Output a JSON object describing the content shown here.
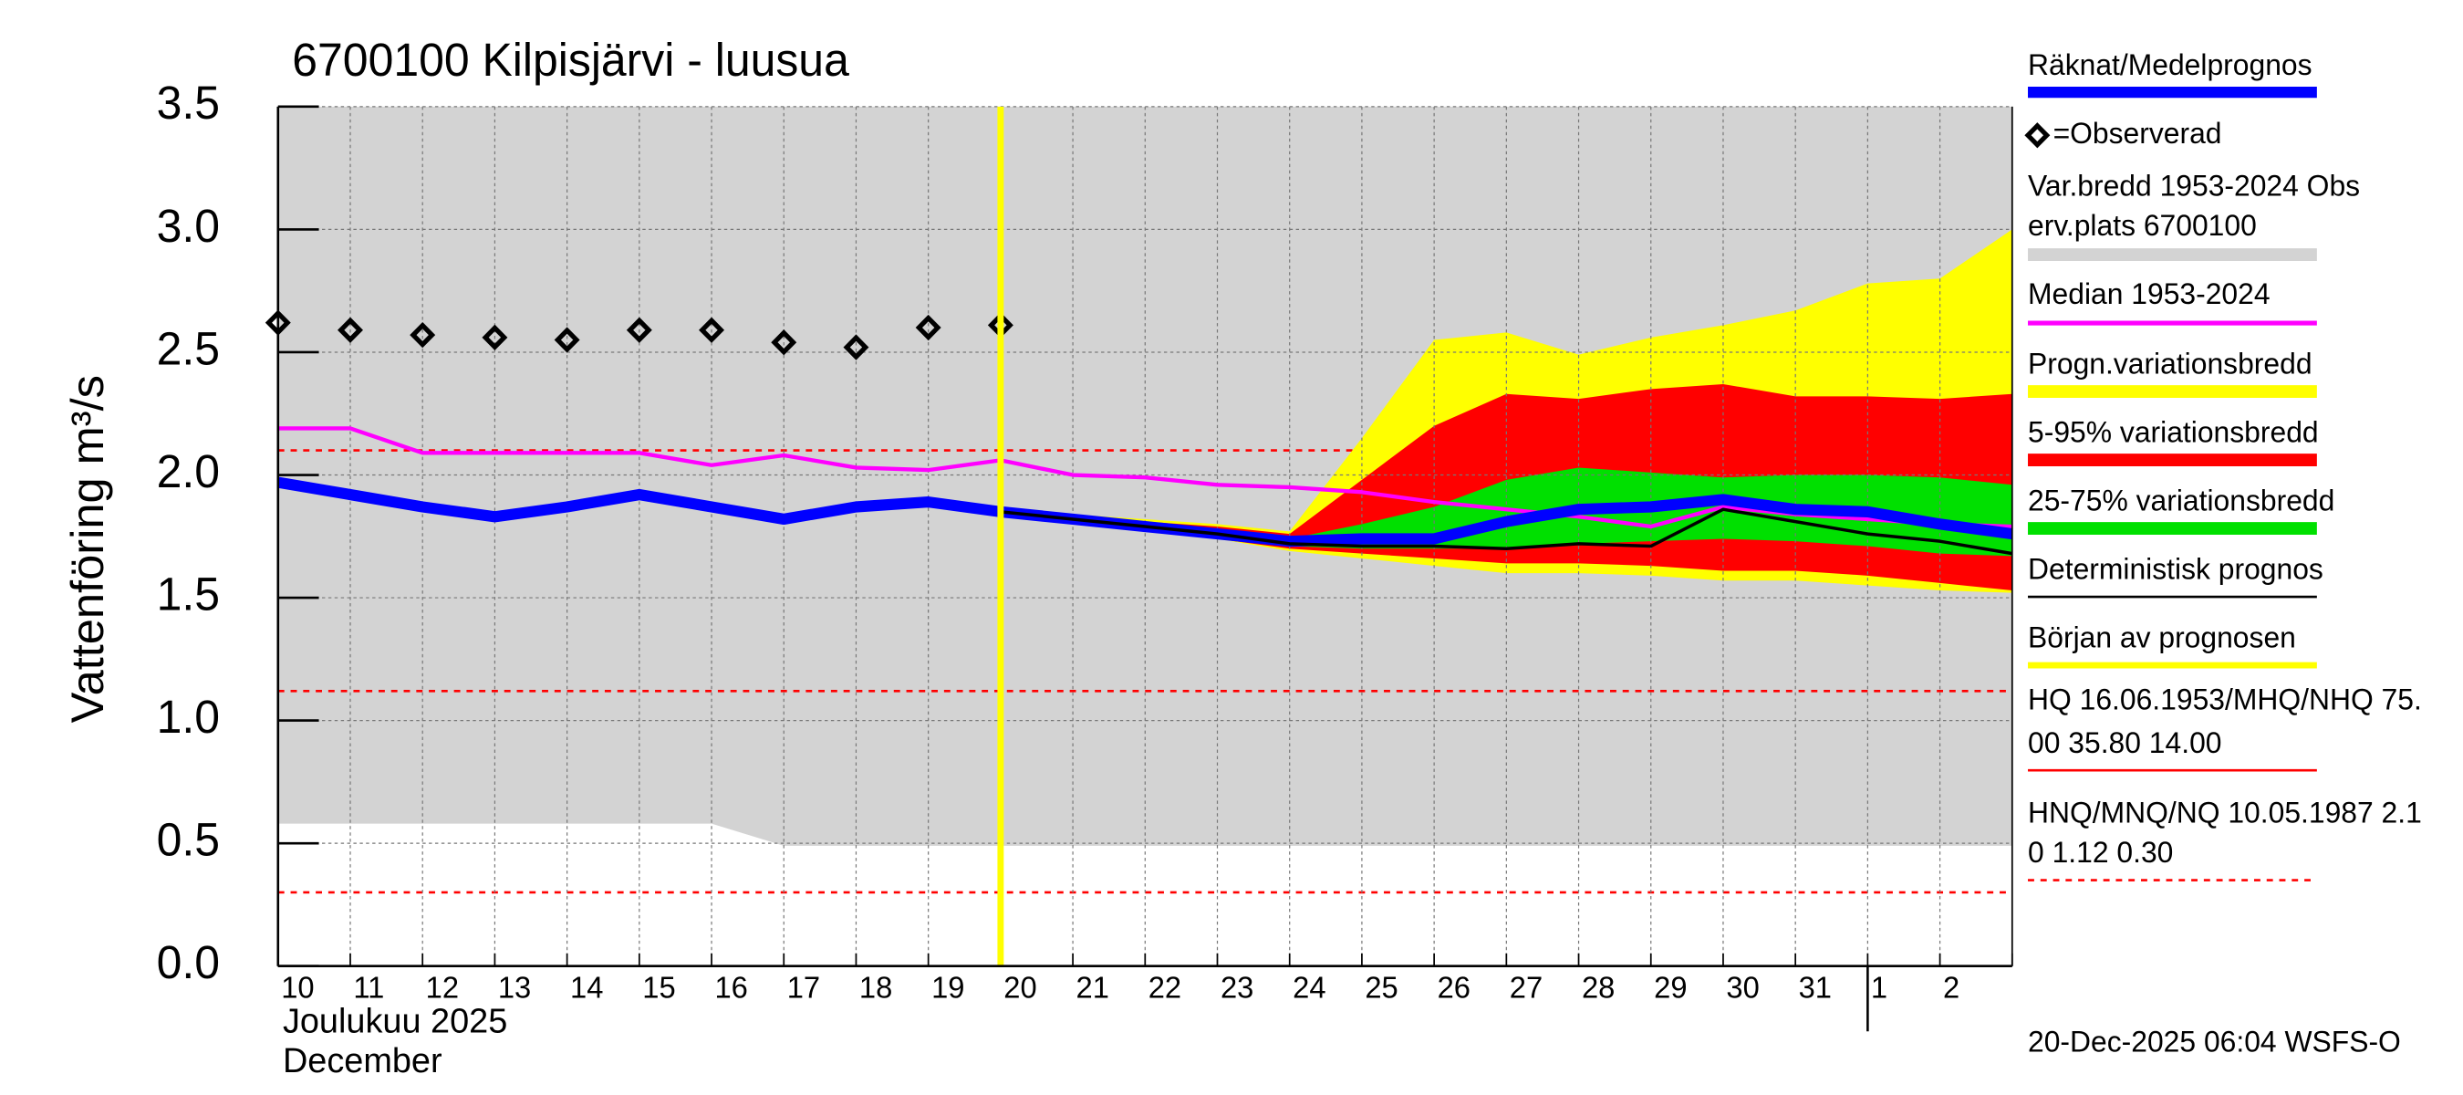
{
  "chart_data": {
    "type": "line",
    "title": "6700100 Kilpisjärvi - luusua",
    "y_label": "Vattenföring m³/s",
    "x_label_lines": [
      "Joulukuu  2025",
      "December"
    ],
    "timestamp": "20-Dec-2025 06:04 WSFS-O",
    "categories": [
      "10",
      "11",
      "12",
      "13",
      "14",
      "15",
      "16",
      "17",
      "18",
      "19",
      "20",
      "21",
      "22",
      "23",
      "24",
      "25",
      "26",
      "27",
      "28",
      "29",
      "30",
      "31",
      "1",
      "2",
      null
    ],
    "ylim": [
      0,
      3.5
    ],
    "yticks": [
      {
        "value": 0,
        "label": "0.0"
      },
      {
        "value": 0.5,
        "label": "0.5"
      },
      {
        "value": 1,
        "label": "1.0"
      },
      {
        "value": 1.5,
        "label": "1.5"
      },
      {
        "value": 2,
        "label": "2.0"
      },
      {
        "value": 2.5,
        "label": "2.5"
      },
      {
        "value": 3,
        "label": "3.0"
      },
      {
        "value": 3.5,
        "label": "3.5"
      }
    ],
    "grid": true,
    "series": [
      {
        "name": [
          "Räknat/Medelprognos"
        ],
        "kind": "line",
        "color": "#0000ff",
        "width": 7,
        "values": [
          1.97,
          1.92,
          1.87,
          1.83,
          1.87,
          1.92,
          1.87,
          1.82,
          1.87,
          1.89,
          1.85,
          1.82,
          1.79,
          1.76,
          1.73,
          1.74,
          1.74,
          1.81,
          1.86,
          1.87,
          1.9,
          1.86,
          1.85,
          1.8,
          1.76
        ]
      },
      {
        "name": [
          "=Observerad"
        ],
        "kind": "marker",
        "color": "#000000",
        "values": [
          2.62,
          2.59,
          2.57,
          2.56,
          2.55,
          2.59,
          2.59,
          2.54,
          2.52,
          2.6,
          2.61,
          null,
          null,
          null,
          null,
          null,
          null,
          null,
          null,
          null,
          null,
          null,
          null,
          null,
          null
        ]
      },
      {
        "name": [
          "Var.bredd 1953-2024   Obs",
          "erv.plats 6700100"
        ],
        "kind": "band",
        "color": "#d3d3d3",
        "lower": [
          0.58,
          0.58,
          0.58,
          0.58,
          0.58,
          0.58,
          0.58,
          0.49,
          0.49,
          0.49,
          0.49,
          0.49,
          0.49,
          0.49,
          0.49,
          0.49,
          0.49,
          0.49,
          0.49,
          0.49,
          0.49,
          0.49,
          0.49,
          0.49,
          0.49
        ],
        "upper": [
          3.5,
          3.5,
          3.5,
          3.5,
          3.5,
          3.5,
          3.5,
          3.5,
          3.5,
          3.5,
          3.5,
          3.5,
          3.5,
          3.5,
          3.5,
          3.5,
          3.5,
          3.5,
          3.5,
          3.5,
          3.5,
          3.5,
          3.5,
          3.5,
          3.5
        ]
      },
      {
        "name": [
          "Median 1953-2024"
        ],
        "kind": "line",
        "color": "#ff00ff",
        "width": 2.5,
        "values": [
          2.19,
          2.19,
          2.09,
          2.09,
          2.09,
          2.09,
          2.04,
          2.08,
          2.03,
          2.02,
          2.06,
          2.0,
          1.99,
          1.96,
          1.95,
          1.93,
          1.89,
          1.86,
          1.83,
          1.79,
          1.87,
          1.84,
          1.82,
          1.8,
          1.79
        ]
      },
      {
        "name": [
          "Progn.variationsbredd"
        ],
        "kind": "band",
        "color": "#ffff00",
        "lower": [
          null,
          null,
          null,
          null,
          null,
          null,
          null,
          null,
          null,
          null,
          1.85,
          1.81,
          1.78,
          1.74,
          1.69,
          1.66,
          1.63,
          1.6,
          1.6,
          1.59,
          1.57,
          1.57,
          1.55,
          1.53,
          1.52
        ],
        "upper": [
          null,
          null,
          null,
          null,
          null,
          null,
          null,
          null,
          null,
          null,
          1.85,
          1.84,
          1.82,
          1.8,
          1.77,
          2.15,
          2.55,
          2.58,
          2.49,
          2.56,
          2.61,
          2.67,
          2.78,
          2.8,
          3.0
        ]
      },
      {
        "name": [
          "5-95% variationsbredd"
        ],
        "kind": "band",
        "color": "#ff0000",
        "lower": [
          null,
          null,
          null,
          null,
          null,
          null,
          null,
          null,
          null,
          null,
          1.85,
          1.81,
          1.78,
          1.74,
          1.7,
          1.68,
          1.66,
          1.64,
          1.64,
          1.63,
          1.61,
          1.61,
          1.59,
          1.56,
          1.53
        ],
        "upper": [
          null,
          null,
          null,
          null,
          null,
          null,
          null,
          null,
          null,
          null,
          1.85,
          1.83,
          1.81,
          1.79,
          1.76,
          1.98,
          2.2,
          2.33,
          2.31,
          2.35,
          2.37,
          2.32,
          2.32,
          2.31,
          2.33
        ]
      },
      {
        "name": [
          "25-75% variationsbredd"
        ],
        "kind": "band",
        "color": "#00e000",
        "lower": [
          null,
          null,
          null,
          null,
          null,
          null,
          null,
          null,
          null,
          null,
          null,
          null,
          null,
          null,
          1.71,
          1.7,
          1.7,
          1.7,
          1.72,
          1.73,
          1.74,
          1.73,
          1.71,
          1.68,
          1.67
        ],
        "upper": [
          null,
          null,
          null,
          null,
          null,
          null,
          null,
          null,
          null,
          null,
          null,
          null,
          null,
          null,
          1.74,
          1.8,
          1.87,
          1.98,
          2.03,
          2.01,
          1.99,
          2.0,
          2.0,
          1.99,
          1.96
        ]
      },
      {
        "name": [
          "Deterministisk prognos"
        ],
        "kind": "line",
        "color": "#000000",
        "width": 2,
        "values": [
          null,
          null,
          null,
          null,
          null,
          null,
          null,
          null,
          null,
          null,
          1.85,
          1.82,
          1.79,
          1.76,
          1.72,
          1.71,
          1.71,
          1.7,
          1.72,
          1.71,
          1.86,
          1.81,
          1.76,
          1.73,
          1.68
        ]
      },
      {
        "name": [
          "Början av prognosen"
        ],
        "kind": "vline",
        "color": "#ffff00",
        "at": "20"
      },
      {
        "name": [
          "HQ 16.06.1953/MHQ/NHQ 75.",
          "00 35.80 14.00"
        ],
        "kind": "legend-only",
        "color": "#ff0000"
      },
      {
        "name": [
          "HNQ/MNQ/NQ 10.05.1987 2.1",
          "0 1.12 0.30"
        ],
        "kind": "hlines",
        "color": "#ff0000",
        "levels": [
          2.1,
          1.12,
          0.3
        ]
      }
    ]
  }
}
